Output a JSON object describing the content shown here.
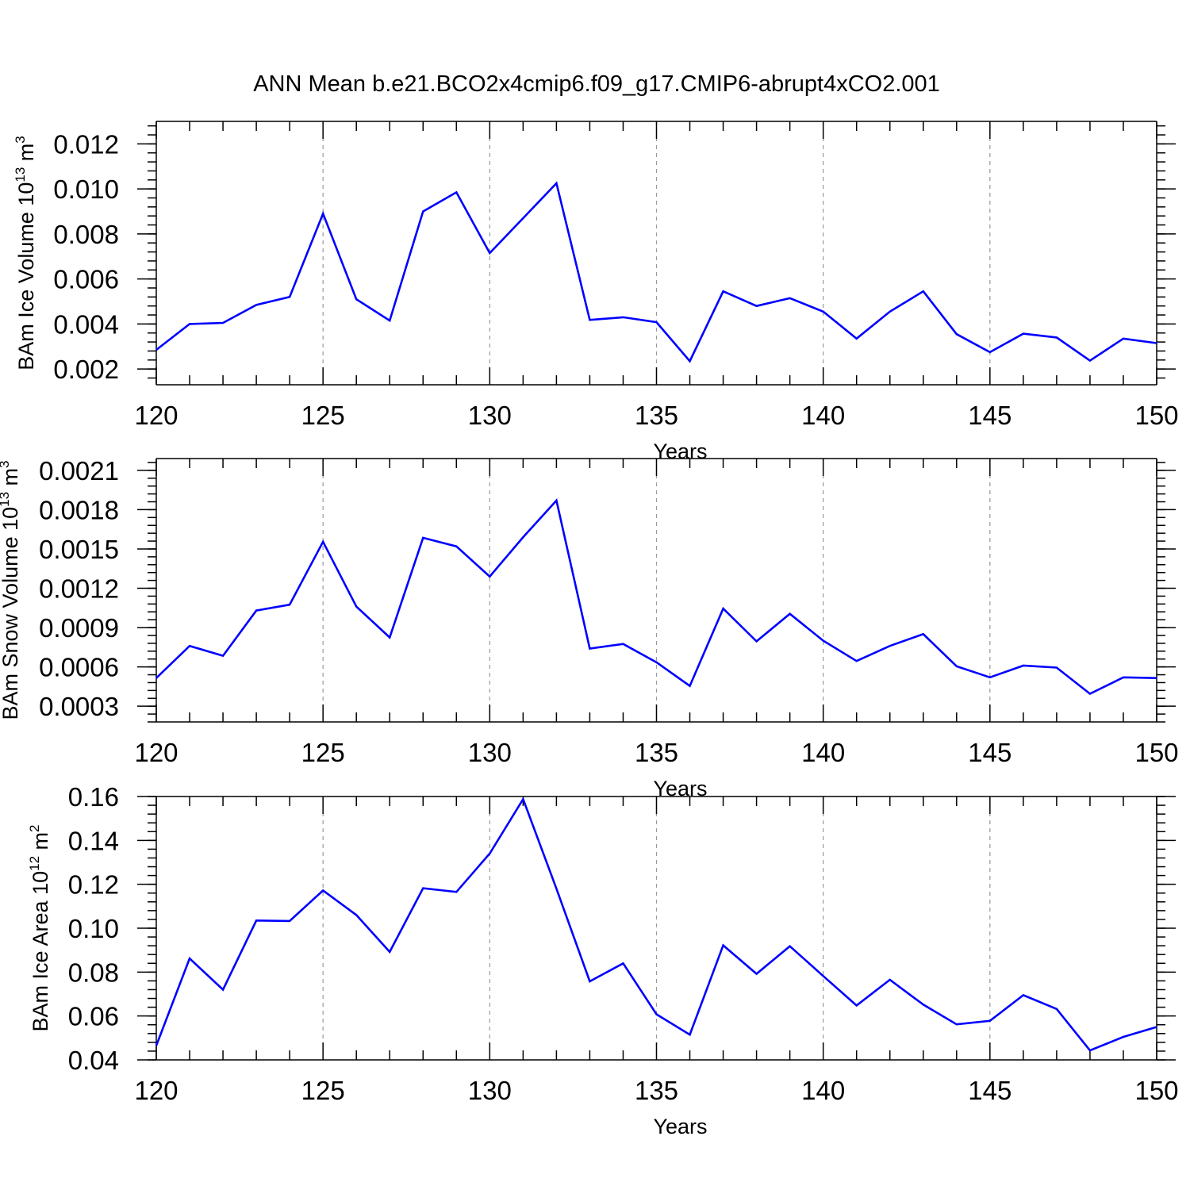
{
  "title": "ANN Mean b.e21.BCO2x4cmip6.f09_g17.CMIP6-abrupt4xCO2.001",
  "colors": {
    "series": "#0000ff",
    "axis": "#000000",
    "grid": "#999999"
  },
  "chart_data": [
    {
      "type": "line",
      "ylabel_main": "BAm Ice Volume 10",
      "ylabel_exp": "13",
      "ylabel_unit": "m",
      "ylabel_unit_exp": "3",
      "xlabel": "Years",
      "xlim": [
        120,
        150
      ],
      "ylim": [
        0.0013,
        0.013
      ],
      "x_ticks": [
        120,
        125,
        130,
        135,
        140,
        145,
        150
      ],
      "y_ticks": [
        0.002,
        0.004,
        0.006,
        0.008,
        0.01,
        0.012
      ],
      "y_tick_labels": [
        "0.002",
        "0.004",
        "0.006",
        "0.008",
        "0.010",
        "0.012"
      ],
      "y_minor_step": 0.0004,
      "grid": "vertical dashed at x ticks",
      "series": [
        {
          "x": [
            120,
            121,
            122,
            123,
            124,
            125,
            126,
            127,
            128,
            129,
            130,
            131,
            132,
            133,
            134,
            135,
            136,
            137,
            138,
            139,
            140,
            141,
            142,
            143,
            144,
            145,
            146,
            147,
            148,
            149,
            150
          ],
          "values": [
            0.00285,
            0.004,
            0.00405,
            0.00485,
            0.0052,
            0.0089,
            0.0051,
            0.00415,
            0.009,
            0.00985,
            0.00715,
            0.0087,
            0.01025,
            0.00418,
            0.0043,
            0.00408,
            0.00235,
            0.00545,
            0.0048,
            0.00515,
            0.00455,
            0.00335,
            0.00455,
            0.00545,
            0.00355,
            0.00275,
            0.00357,
            0.0034,
            0.00237,
            0.00335,
            0.00315
          ]
        }
      ]
    },
    {
      "type": "line",
      "ylabel_main": "BAm Snow Volume 10",
      "ylabel_exp": "13",
      "ylabel_unit": "m",
      "ylabel_unit_exp": "3",
      "xlabel": "Years",
      "xlim": [
        120,
        150
      ],
      "ylim": [
        0.00018,
        0.00219
      ],
      "x_ticks": [
        120,
        125,
        130,
        135,
        140,
        145,
        150
      ],
      "y_ticks": [
        0.0003,
        0.0006,
        0.0009,
        0.0012,
        0.0015,
        0.0018,
        0.0021
      ],
      "y_tick_labels": [
        "0.0003",
        "0.0006",
        "0.0009",
        "0.0012",
        "0.0015",
        "0.0018",
        "0.0021"
      ],
      "y_minor_step": 6e-05,
      "grid": "vertical dashed at x ticks",
      "series": [
        {
          "x": [
            120,
            121,
            122,
            123,
            124,
            125,
            126,
            127,
            128,
            129,
            130,
            131,
            132,
            133,
            134,
            135,
            136,
            137,
            138,
            139,
            140,
            141,
            142,
            143,
            144,
            145,
            146,
            147,
            148,
            149,
            150
          ],
          "values": [
            0.000515,
            0.00076,
            0.000685,
            0.00103,
            0.001075,
            0.001555,
            0.00106,
            0.000825,
            0.001585,
            0.00152,
            0.00129,
            0.00159,
            0.00187,
            0.00074,
            0.000775,
            0.000635,
            0.000455,
            0.001045,
            0.000795,
            0.001005,
            0.0008,
            0.000645,
            0.00076,
            0.00085,
            0.000605,
            0.00052,
            0.00061,
            0.000595,
            0.000395,
            0.00052,
            0.000515
          ]
        }
      ]
    },
    {
      "type": "line",
      "ylabel_main": "BAm Ice Area 10",
      "ylabel_exp": "12",
      "ylabel_unit": "m",
      "ylabel_unit_exp": "2",
      "xlabel": "Years",
      "xlim": [
        120,
        150
      ],
      "ylim": [
        0.04,
        0.16
      ],
      "x_ticks": [
        120,
        125,
        130,
        135,
        140,
        145,
        150
      ],
      "y_ticks": [
        0.04,
        0.06,
        0.08,
        0.1,
        0.12,
        0.14,
        0.16
      ],
      "y_tick_labels": [
        "0.04",
        "0.06",
        "0.08",
        "0.10",
        "0.12",
        "0.14",
        "0.16"
      ],
      "y_minor_step": 0.004,
      "grid": "vertical dashed at x ticks",
      "series": [
        {
          "x": [
            120,
            121,
            122,
            123,
            124,
            125,
            126,
            127,
            128,
            129,
            130,
            131,
            132,
            133,
            134,
            135,
            136,
            137,
            138,
            139,
            140,
            141,
            142,
            143,
            144,
            145,
            146,
            147,
            148,
            149,
            150
          ],
          "values": [
            0.0465,
            0.0862,
            0.072,
            0.1035,
            0.1033,
            0.1172,
            0.106,
            0.0892,
            0.1182,
            0.1165,
            0.134,
            0.1588,
            0.118,
            0.0758,
            0.084,
            0.0608,
            0.0515,
            0.0922,
            0.0792,
            0.0918,
            0.0782,
            0.0648,
            0.0765,
            0.0652,
            0.0562,
            0.0578,
            0.0695,
            0.0632,
            0.0443,
            0.0505,
            0.055
          ]
        }
      ]
    }
  ]
}
